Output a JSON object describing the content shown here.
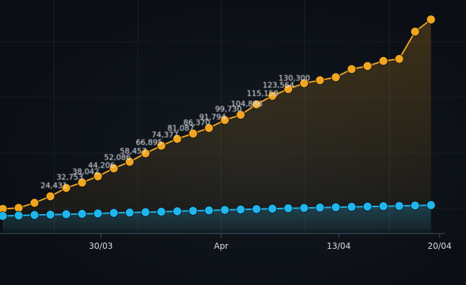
{
  "chart_data": {
    "type": "line",
    "x_tick_labels": [
      "30/03",
      "Apr",
      "13/04",
      "20/04"
    ],
    "grid": true,
    "legend": "none",
    "colors": {
      "orange": "#f2a51e",
      "blue": "#1fb6ee",
      "background": "#0b0f15"
    },
    "series": [
      {
        "values": [
          12000,
          13000,
          18000,
          24431,
          32753,
          38042,
          44206,
          52086,
          58457,
          66895,
          74377,
          81087,
          86370,
          91794,
          99730,
          104886,
          115158,
          123564,
          130300,
          136000,
          139000,
          142000,
          150000,
          153000,
          158000,
          160000,
          187000,
          199000
        ],
        "labels": [
          "",
          "",
          "",
          "24,431",
          "32,753",
          "38,042",
          "44,206",
          "52,086",
          "58,457",
          "66,895",
          "74,377",
          "81,087",
          "86,370",
          "91,794",
          "99,730",
          "104,886",
          "115,158",
          "123,564",
          "130,300",
          "",
          "",
          "",
          "",
          "",
          "",
          "",
          "",
          ""
        ]
      },
      {
        "values": [
          5000,
          5500,
          6000,
          6300,
          6700,
          7100,
          7500,
          8000,
          8400,
          8800,
          9200,
          9700,
          10100,
          10500,
          11000,
          11400,
          11800,
          12200,
          12600,
          12900,
          13300,
          13600,
          14000,
          14300,
          14600,
          14900,
          15300,
          15700
        ],
        "labels": [
          "",
          "",
          "",
          "",
          "",
          "",
          "",
          "",
          "",
          "",
          "",
          "",
          "",
          "",
          "",
          "",
          "",
          "",
          "",
          "",
          "",
          "",
          "",
          "",
          "",
          "",
          "",
          ""
        ]
      }
    ]
  }
}
